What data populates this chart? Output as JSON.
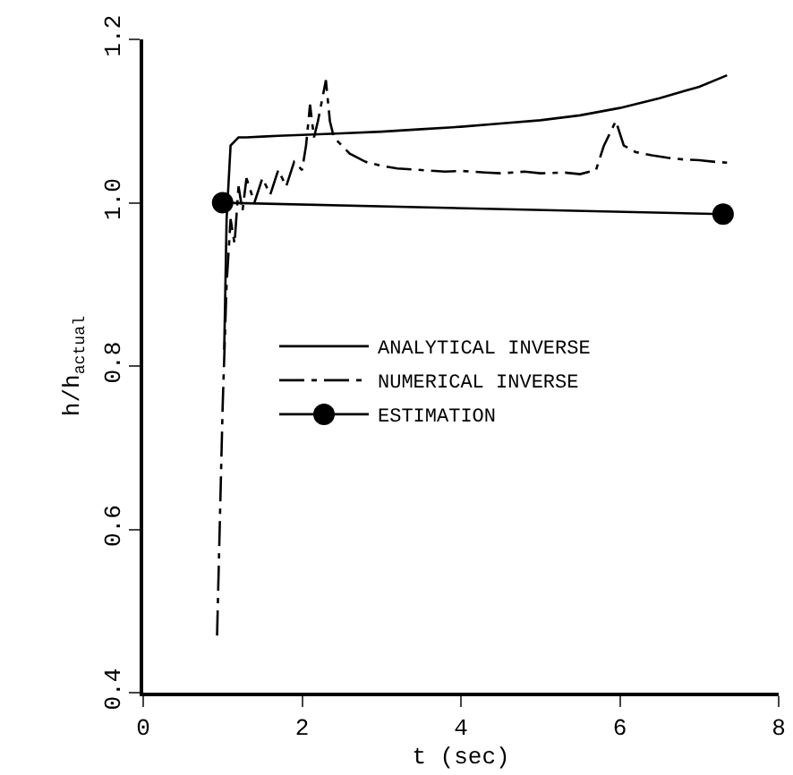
{
  "chart_data": {
    "type": "line",
    "xlabel": "t (sec)",
    "ylabel": "h/h$_{actual}$",
    "xlim": [
      0,
      8
    ],
    "ylim": [
      0.4,
      1.2
    ],
    "xticks": [
      0,
      2,
      4,
      6,
      8
    ],
    "yticks": [
      0.4,
      0.6,
      0.8,
      {
        "value": 1,
        "label": "1.0"
      },
      1.2
    ],
    "grid": false,
    "legend": "right",
    "series": [
      {
        "name": "ANALYTICAL INVERSE",
        "color": "#000000",
        "line_style": "solid",
        "marker": "none",
        "x": [
          1.02,
          1.05,
          1.1,
          1.2,
          1.3,
          1.5,
          1.7,
          2.0,
          2.5,
          3.0,
          3.5,
          4.0,
          4.5,
          5.0,
          5.5,
          6.0,
          6.5,
          7.0,
          7.35
        ],
        "values": [
          0.82,
          0.98,
          1.07,
          1.08,
          1.08,
          1.081,
          1.082,
          1.083,
          1.085,
          1.087,
          1.09,
          1.093,
          1.097,
          1.101,
          1.107,
          1.116,
          1.128,
          1.142,
          1.156
        ]
      },
      {
        "name": "NUMERICAL INVERSE",
        "color": "#000000",
        "line_style": "dashed",
        "marker": "none",
        "x": [
          0.93,
          1.0,
          1.05,
          1.1,
          1.15,
          1.2,
          1.25,
          1.3,
          1.4,
          1.5,
          1.6,
          1.7,
          1.8,
          1.9,
          2.0,
          2.05,
          2.1,
          2.15,
          2.2,
          2.3,
          2.35,
          2.4,
          2.5,
          2.6,
          2.8,
          3.0,
          3.2,
          3.5,
          3.8,
          4.0,
          4.3,
          4.5,
          4.8,
          5.0,
          5.3,
          5.5,
          5.7,
          5.8,
          5.9,
          5.95,
          6.05,
          6.2,
          6.4,
          6.6,
          6.8,
          7.0,
          7.2,
          7.35
        ],
        "values": [
          0.47,
          0.75,
          0.9,
          0.98,
          0.95,
          1.02,
          0.99,
          1.03,
          1.0,
          1.03,
          1.01,
          1.04,
          1.02,
          1.05,
          1.04,
          1.07,
          1.12,
          1.08,
          1.1,
          1.15,
          1.1,
          1.08,
          1.07,
          1.06,
          1.05,
          1.045,
          1.042,
          1.04,
          1.038,
          1.039,
          1.037,
          1.036,
          1.038,
          1.036,
          1.037,
          1.035,
          1.04,
          1.07,
          1.09,
          1.1,
          1.07,
          1.062,
          1.058,
          1.055,
          1.053,
          1.052,
          1.05,
          1.049
        ]
      },
      {
        "name": "ESTIMATION",
        "color": "#000000",
        "line_style": "solid",
        "marker": "circle",
        "x": [
          1.0,
          7.3
        ],
        "values": [
          1.0,
          0.986
        ]
      }
    ]
  }
}
